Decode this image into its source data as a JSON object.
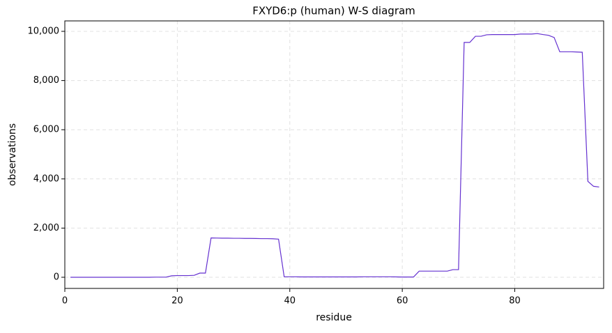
{
  "chart_data": {
    "type": "line",
    "title": "FXYD6:p (human) W-S diagram",
    "x_label": "residue",
    "y_label": "observations",
    "series": [
      {
        "color": "#6430d0",
        "x": [
          1,
          2,
          3,
          4,
          5,
          6,
          7,
          8,
          9,
          10,
          11,
          12,
          13,
          14,
          15,
          16,
          17,
          18,
          19,
          20,
          21,
          22,
          23,
          24,
          25,
          26,
          27,
          28,
          29,
          30,
          31,
          32,
          33,
          34,
          35,
          36,
          37,
          38,
          39,
          40,
          41,
          42,
          43,
          44,
          45,
          46,
          47,
          48,
          49,
          50,
          51,
          52,
          53,
          54,
          55,
          56,
          57,
          58,
          59,
          60,
          61,
          62,
          63,
          64,
          65,
          66,
          67,
          68,
          69,
          70,
          71,
          72,
          73,
          74,
          75,
          76,
          77,
          78,
          79,
          80,
          81,
          82,
          83,
          84,
          85,
          86,
          87,
          88,
          89,
          90,
          91,
          92,
          93,
          94,
          95
        ],
        "values": [
          0,
          0,
          0,
          0,
          0,
          0,
          0,
          0,
          0,
          0,
          0,
          0,
          0,
          0,
          0,
          5,
          5,
          5,
          60,
          70,
          70,
          70,
          80,
          170,
          170,
          1600,
          1595,
          1590,
          1590,
          1585,
          1585,
          1580,
          1580,
          1575,
          1570,
          1570,
          1565,
          1550,
          20,
          20,
          20,
          15,
          15,
          15,
          15,
          15,
          15,
          15,
          15,
          15,
          15,
          15,
          20,
          20,
          20,
          20,
          20,
          20,
          15,
          10,
          10,
          10,
          250,
          250,
          250,
          250,
          250,
          250,
          310,
          310,
          9550,
          9550,
          9800,
          9800,
          9860,
          9870,
          9870,
          9870,
          9870,
          9870,
          9890,
          9890,
          9890,
          9910,
          9870,
          9840,
          9750,
          9170,
          9170,
          9170,
          9160,
          9150,
          3900,
          3700,
          3670
        ]
      }
    ],
    "xlim": [
      0,
      95.8
    ],
    "ylim": [
      -453,
      10425
    ],
    "xticks": [
      0,
      20,
      40,
      60,
      80
    ],
    "yticks": [
      0,
      {
        "value": 2000,
        "label": "2,000"
      },
      {
        "value": 4000,
        "label": "4,000"
      },
      {
        "value": 6000,
        "label": "6,000"
      },
      {
        "value": 8000,
        "label": "8,000"
      },
      {
        "value": 10000,
        "label": "10,000"
      }
    ],
    "grid": true
  }
}
